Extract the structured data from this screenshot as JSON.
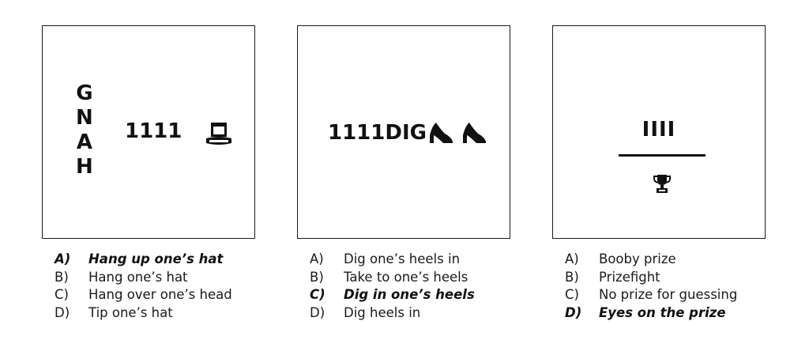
{
  "puzzles": [
    {
      "rebus": {
        "vertical_letters": [
          "G",
          "N",
          "A",
          "H"
        ],
        "text": "1111",
        "icon": "top-hat-icon"
      },
      "options": [
        {
          "letter": "A)",
          "text": "Hang up one’s hat",
          "correct": true
        },
        {
          "letter": "B)",
          "text": "Hang one’s hat",
          "correct": false
        },
        {
          "letter": "C)",
          "text": "Hang over one’s head",
          "correct": false
        },
        {
          "letter": "D)",
          "text": "Tip one’s hat",
          "correct": false
        }
      ]
    },
    {
      "rebus": {
        "text": "1111DIG",
        "icons": [
          "high-heel-icon",
          "high-heel-icon"
        ]
      },
      "options": [
        {
          "letter": "A)",
          "text": "Dig one’s heels in",
          "correct": false
        },
        {
          "letter": "B)",
          "text": "Take to one’s heels",
          "correct": false
        },
        {
          "letter": "C)",
          "text": "Dig in one’s heels",
          "correct": true
        },
        {
          "letter": "D)",
          "text": "Dig heels in",
          "correct": false
        }
      ]
    },
    {
      "rebus": {
        "top_text": "IIII",
        "icon": "trophy-icon"
      },
      "options": [
        {
          "letter": "A)",
          "text": "Booby prize",
          "correct": false
        },
        {
          "letter": "B)",
          "text": "Prizefight",
          "correct": false
        },
        {
          "letter": "C)",
          "text": "No prize for guessing",
          "correct": false
        },
        {
          "letter": "D)",
          "text": "Eyes on the prize",
          "correct": true
        }
      ]
    }
  ]
}
